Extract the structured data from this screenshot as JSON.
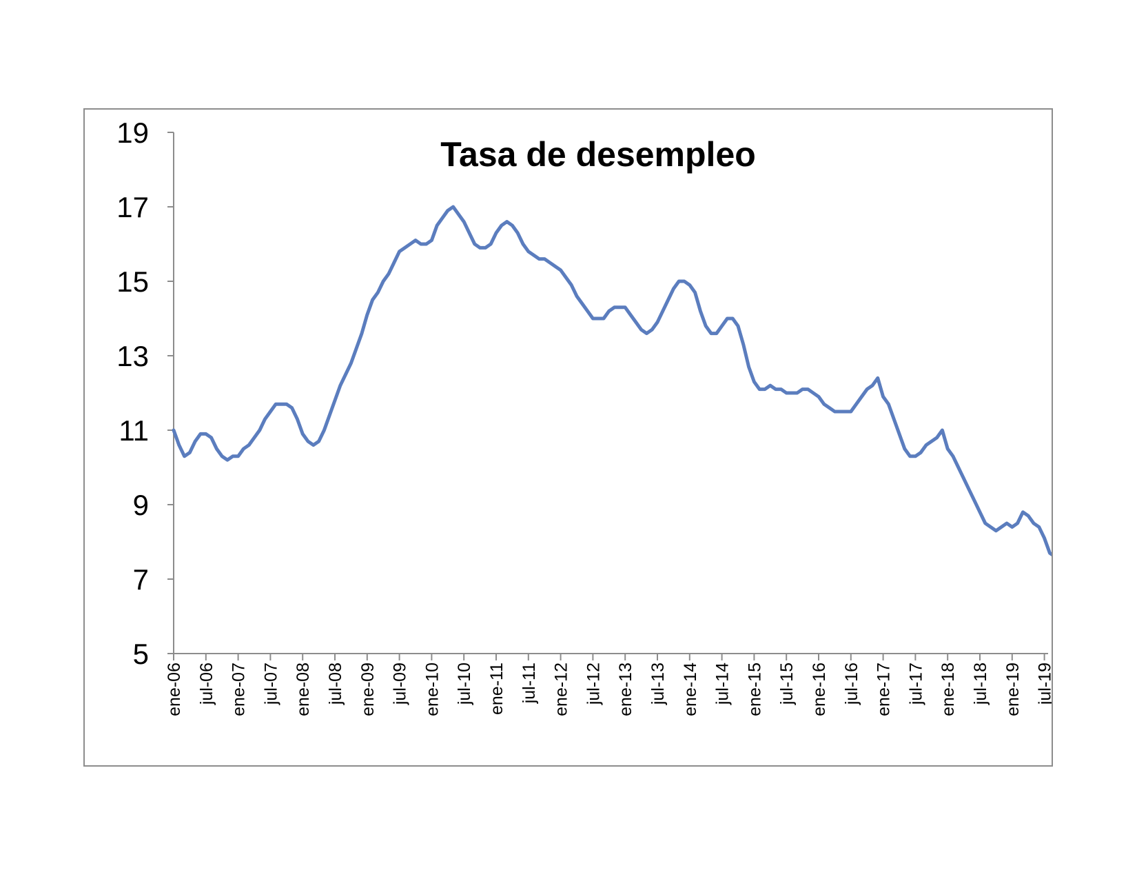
{
  "chart_data": {
    "type": "line",
    "title": "Tasa de desempleo",
    "xlabel": "",
    "ylabel": "",
    "ylim": [
      5,
      19
    ],
    "yticks": [
      5,
      7,
      9,
      11,
      13,
      15,
      17,
      19
    ],
    "grid": false,
    "legend": "none",
    "line_color": "#5B7DBE",
    "xtick_labels": [
      "ene-06",
      "jul-06",
      "ene-07",
      "jul-07",
      "ene-08",
      "jul-08",
      "ene-09",
      "jul-09",
      "ene-10",
      "jul-10",
      "ene-11",
      "jul-11",
      "ene-12",
      "jul-12",
      "ene-13",
      "jul-13",
      "ene-14",
      "jul-14",
      "ene-15",
      "jul-15",
      "ene-16",
      "jul-16",
      "ene-17",
      "jul-17",
      "ene-18",
      "jul-18",
      "ene-19",
      "jul-19"
    ],
    "x_start": "ene-06",
    "x_frequency": "monthly",
    "series": [
      {
        "values": [
          11.0,
          10.6,
          10.3,
          10.4,
          10.7,
          10.9,
          10.9,
          10.8,
          10.5,
          10.3,
          10.2,
          10.3,
          10.3,
          10.5,
          10.6,
          10.8,
          11.0,
          11.3,
          11.5,
          11.7,
          11.7,
          11.7,
          11.6,
          11.3,
          10.9,
          10.7,
          10.6,
          10.7,
          11.0,
          11.4,
          11.8,
          12.2,
          12.5,
          12.8,
          13.2,
          13.6,
          14.1,
          14.5,
          14.7,
          15.0,
          15.2,
          15.5,
          15.8,
          15.9,
          16.0,
          16.1,
          16.0,
          16.0,
          16.1,
          16.5,
          16.7,
          16.9,
          17.0,
          16.8,
          16.6,
          16.3,
          16.0,
          15.9,
          15.9,
          16.0,
          16.3,
          16.5,
          16.6,
          16.5,
          16.3,
          16.0,
          15.8,
          15.7,
          15.6,
          15.6,
          15.5,
          15.4,
          15.3,
          15.1,
          14.9,
          14.6,
          14.4,
          14.2,
          14.0,
          14.0,
          14.0,
          14.2,
          14.3,
          14.3,
          14.3,
          14.1,
          13.9,
          13.7,
          13.6,
          13.7,
          13.9,
          14.2,
          14.5,
          14.8,
          15.0,
          15.0,
          14.9,
          14.7,
          14.2,
          13.8,
          13.6,
          13.6,
          13.8,
          14.0,
          14.0,
          13.8,
          13.3,
          12.7,
          12.3,
          12.1,
          12.1,
          12.2,
          12.1,
          12.1,
          12.0,
          12.0,
          12.0,
          12.1,
          12.1,
          12.0,
          11.9,
          11.7,
          11.6,
          11.5,
          11.5,
          11.5,
          11.5,
          11.7,
          11.9,
          12.1,
          12.2,
          12.4,
          11.9,
          11.7,
          11.3,
          10.9,
          10.5,
          10.3,
          10.3,
          10.4,
          10.6,
          10.7,
          10.8,
          11.0,
          10.5,
          10.3,
          10.0,
          9.7,
          9.4,
          9.1,
          8.8,
          8.5,
          8.4,
          8.3,
          8.4,
          8.5,
          8.4,
          8.5,
          8.8,
          8.7,
          8.5,
          8.4,
          8.1,
          7.7,
          7.6,
          7.7
        ]
      }
    ]
  }
}
